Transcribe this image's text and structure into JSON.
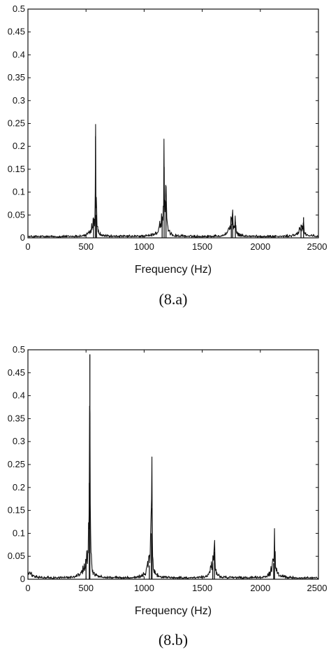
{
  "chart_data": [
    {
      "type": "line",
      "caption": "(8.a)",
      "xlabel": "Frequency  (Hz)",
      "ylabel": "",
      "xlim": [
        0,
        2500
      ],
      "ylim": [
        0,
        0.5
      ],
      "x_ticks": [
        0,
        500,
        1000,
        1500,
        2000,
        2500
      ],
      "y_ticks": [
        0,
        0.05,
        0.1,
        0.15,
        0.2,
        0.25,
        0.3,
        0.35,
        0.4,
        0.45,
        0.5
      ],
      "grid": false,
      "color": "#111111",
      "baseline": 0.004,
      "peaks": [
        {
          "x": 565,
          "y": 0.035,
          "width": 22
        },
        {
          "x": 582,
          "y": 0.222,
          "width": 2
        },
        {
          "x": 590,
          "y": 0.05,
          "width": 4
        },
        {
          "x": 1155,
          "y": 0.035,
          "width": 28
        },
        {
          "x": 1172,
          "y": 0.155,
          "width": 3
        },
        {
          "x": 1188,
          "y": 0.08,
          "width": 5
        },
        {
          "x": 1750,
          "y": 0.03,
          "width": 25
        },
        {
          "x": 1762,
          "y": 0.04,
          "width": 3
        },
        {
          "x": 1785,
          "y": 0.035,
          "width": 3
        },
        {
          "x": 2350,
          "y": 0.02,
          "width": 25
        },
        {
          "x": 2372,
          "y": 0.045,
          "width": 2
        }
      ]
    },
    {
      "type": "line",
      "caption": "(8.b)",
      "xlabel": "Frequency  (Hz)",
      "ylabel": "",
      "xlim": [
        0,
        2500
      ],
      "ylim": [
        0,
        0.5
      ],
      "x_ticks": [
        0,
        500,
        1000,
        1500,
        2000,
        2500
      ],
      "y_ticks": [
        0,
        0.05,
        0.1,
        0.15,
        0.2,
        0.25,
        0.3,
        0.35,
        0.4,
        0.45,
        0.5
      ],
      "grid": false,
      "color": "#111111",
      "baseline": 0.004,
      "initial": 0.015,
      "peaks": [
        {
          "x": 500,
          "y": 0.03,
          "width": 30
        },
        {
          "x": 528,
          "y": 0.21,
          "width": 6
        },
        {
          "x": 533,
          "y": 0.49,
          "width": 2
        },
        {
          "x": 1045,
          "y": 0.03,
          "width": 25
        },
        {
          "x": 1063,
          "y": 0.1,
          "width": 7
        },
        {
          "x": 1068,
          "y": 0.155,
          "width": 2
        },
        {
          "x": 1590,
          "y": 0.035,
          "width": 20
        },
        {
          "x": 1605,
          "y": 0.06,
          "width": 4
        },
        {
          "x": 2115,
          "y": 0.035,
          "width": 22
        },
        {
          "x": 2122,
          "y": 0.055,
          "width": 4
        }
      ]
    }
  ]
}
